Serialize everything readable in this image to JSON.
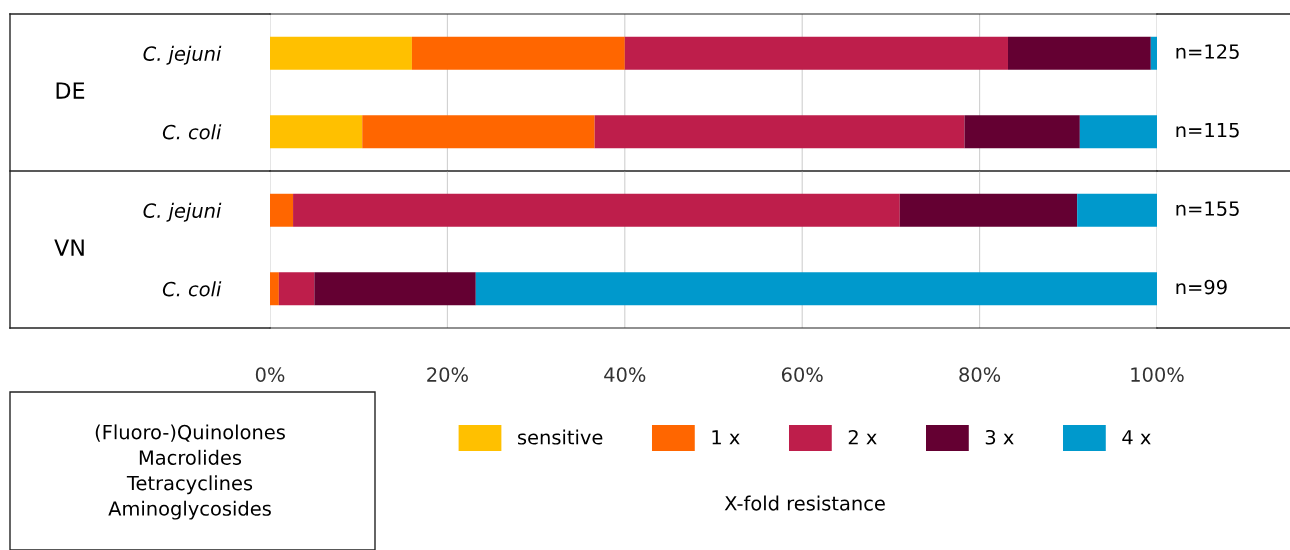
{
  "chart_data": {
    "type": "bar",
    "orientation": "horizontal",
    "stacked": true,
    "categories": [
      "C. jejuni",
      "C. coli",
      "C. jejuni",
      "C. coli"
    ],
    "series": [
      {
        "name": "sensitive",
        "color": "#ffc000",
        "values": [
          16.0,
          10.4,
          0,
          0
        ]
      },
      {
        "name": "1 x",
        "color": "#ff6600",
        "values": [
          24.0,
          26.2,
          2.6,
          1.0
        ]
      },
      {
        "name": "2 x",
        "color": "#be1e4b",
        "values": [
          43.2,
          41.7,
          68.4,
          4.0
        ]
      },
      {
        "name": "3 x",
        "color": "#640032",
        "values": [
          16.1,
          13.0,
          20.0,
          18.2
        ]
      },
      {
        "name": "4 x",
        "color": "#0099cc",
        "values": [
          0.7,
          8.7,
          9.0,
          76.8
        ]
      }
    ],
    "xlim": [
      0,
      100
    ],
    "xticks": [
      {
        "value": 0,
        "label": "0%"
      },
      {
        "value": 20,
        "label": "20%"
      },
      {
        "value": 40,
        "label": "40%"
      },
      {
        "value": 60,
        "label": "60%"
      },
      {
        "value": 80,
        "label": "80%"
      },
      {
        "value": 100,
        "label": "100%"
      }
    ],
    "grid": "x",
    "legend": "bottom",
    "legend_title": "X-fold resistance",
    "annotations": [
      "DE",
      "VN",
      "(Fluoro-)Quinolones\nMacrolides\nTetracyclines\nAminoglycosides",
      "n=125",
      "n=115",
      "n=155",
      "n=99"
    ]
  }
}
